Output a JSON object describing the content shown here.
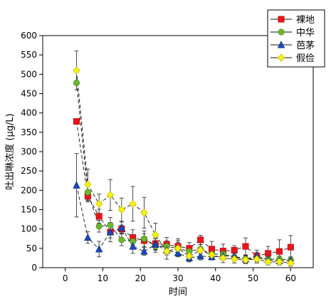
{
  "chart_data": {
    "type": "line",
    "xlabel": "时间",
    "ylabel": "吐出啉浓度 (μg/L)",
    "xlim": [
      -6,
      66
    ],
    "ylim": [
      0,
      600
    ],
    "xticks": [
      0,
      10,
      20,
      30,
      40,
      50,
      60
    ],
    "yticks": [
      0,
      50,
      100,
      150,
      200,
      250,
      300,
      350,
      400,
      450,
      500,
      550,
      600
    ],
    "legend_position": "top-right",
    "grid": false,
    "series": [
      {
        "name": "裸地",
        "color": "#e8141b",
        "marker": "square",
        "x": [
          3,
          6,
          9,
          12,
          15,
          18,
          21,
          24,
          27,
          30,
          33,
          36,
          39,
          42,
          45,
          48,
          51,
          54,
          57,
          60
        ],
        "y": [
          378,
          185,
          133,
          92,
          100,
          78,
          70,
          62,
          60,
          55,
          50,
          72,
          48,
          43,
          45,
          55,
          30,
          37,
          42,
          53
        ],
        "err": [
          0,
          12,
          18,
          15,
          10,
          20,
          18,
          15,
          18,
          20,
          15,
          12,
          20,
          18,
          12,
          22,
          15,
          18,
          30,
          30
        ]
      },
      {
        "name": "中华",
        "color": "#6bb82e",
        "marker": "circle",
        "x": [
          3,
          6,
          9,
          12,
          15,
          18,
          21,
          24,
          27,
          30,
          33,
          36,
          39,
          42,
          45,
          48,
          51,
          54,
          57,
          60
        ],
        "y": [
          478,
          195,
          107,
          110,
          72,
          68,
          75,
          55,
          55,
          50,
          42,
          48,
          35,
          35,
          27,
          22,
          25,
          22,
          22,
          20
        ],
        "err": [
          0,
          25,
          15,
          20,
          15,
          15,
          20,
          15,
          15,
          15,
          12,
          12,
          12,
          12,
          10,
          10,
          10,
          8,
          8,
          8
        ]
      },
      {
        "name": "芭茅",
        "color": "#1a48b8",
        "marker": "triangle",
        "x": [
          3,
          6,
          9,
          12,
          15,
          18,
          21,
          24,
          27,
          30,
          33,
          36,
          39,
          42,
          45,
          48,
          51,
          54,
          57,
          60
        ],
        "y": [
          213,
          78,
          48,
          92,
          103,
          55,
          42,
          60,
          45,
          38,
          25,
          30,
          28,
          30,
          30,
          22,
          30,
          20,
          18,
          18
        ],
        "err": [
          82,
          15,
          20,
          25,
          15,
          18,
          10,
          15,
          12,
          10,
          8,
          10,
          8,
          10,
          8,
          8,
          10,
          8,
          8,
          8
        ]
      },
      {
        "name": "假俭",
        "color": "#f6f20f",
        "marker": "diamond",
        "x": [
          3,
          6,
          9,
          12,
          15,
          18,
          21,
          24,
          27,
          30,
          33,
          36,
          39,
          42,
          45,
          48,
          51,
          54,
          57,
          60
        ],
        "y": [
          510,
          215,
          165,
          188,
          150,
          165,
          142,
          85,
          42,
          50,
          30,
          45,
          33,
          25,
          22,
          20,
          22,
          15,
          15,
          12
        ],
        "err": [
          50,
          40,
          25,
          40,
          30,
          45,
          40,
          30,
          20,
          20,
          15,
          15,
          12,
          12,
          10,
          10,
          10,
          8,
          8,
          8
        ]
      }
    ]
  }
}
